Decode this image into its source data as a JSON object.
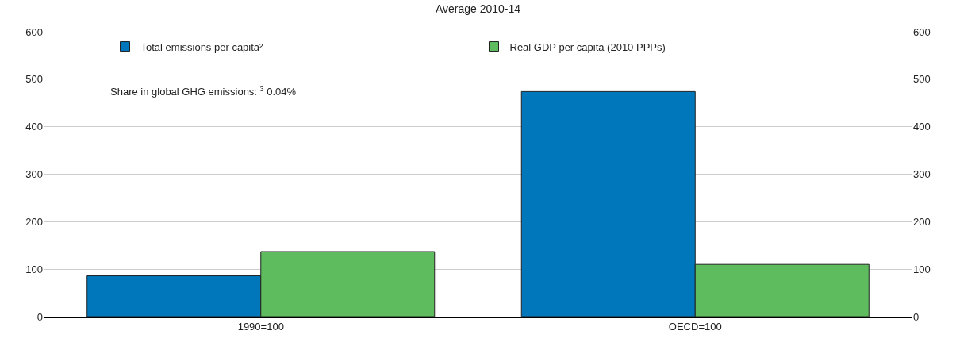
{
  "chart_data": {
    "type": "bar",
    "title": "Average 2010-14",
    "categories": [
      "1990=100",
      "OECD=100"
    ],
    "series": [
      {
        "name": "Total emissions per capita²",
        "color": "#0077bb",
        "values": [
          86,
          474
        ]
      },
      {
        "name": "Real GDP per capita (2010 PPPs)",
        "color": "#5ebb5e",
        "values": [
          137,
          110
        ]
      }
    ],
    "ylim": [
      0,
      600
    ],
    "yticks": [
      0,
      100,
      200,
      300,
      400,
      500,
      600
    ],
    "y2lim": [
      0,
      600
    ],
    "y2ticks": [
      0,
      100,
      200,
      300,
      400,
      500,
      600
    ],
    "annotations": [
      "Share in global GHG emissions: $^{3}$ 0.04%"
    ],
    "grid": "y",
    "legend": "top"
  }
}
